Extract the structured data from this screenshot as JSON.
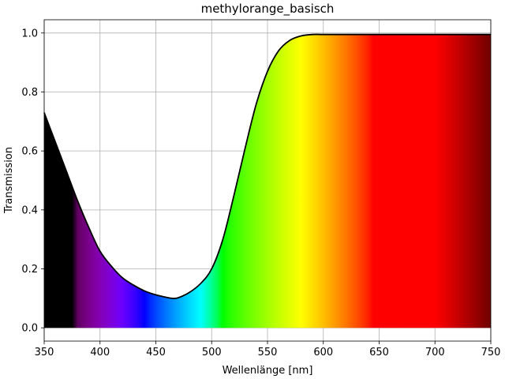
{
  "chart_data": {
    "type": "area",
    "title": "methylorange_basisch",
    "xlabel": "Wellenlänge [nm]",
    "ylabel": "Transmission",
    "xlim": [
      350,
      750
    ],
    "ylim": [
      -0.045,
      1.045
    ],
    "xticks": [
      350,
      400,
      450,
      500,
      550,
      600,
      650,
      700,
      750
    ],
    "yticks": [
      0.0,
      0.2,
      0.4,
      0.6,
      0.8,
      1.0
    ],
    "ytick_labels": [
      "0.0",
      "0.2",
      "0.4",
      "0.6",
      "0.8",
      "1.0"
    ],
    "grid": true,
    "fill": "visible spectrum colors under the curve",
    "series": [
      {
        "x": [
          350,
          360,
          370,
          380,
          390,
          400,
          410,
          420,
          430,
          440,
          450,
          460,
          465,
          470,
          480,
          490,
          500,
          510,
          520,
          530,
          540,
          550,
          560,
          570,
          580,
          590,
          600,
          620,
          650,
          700,
          750
        ],
        "y": [
          0.73,
          0.63,
          0.53,
          0.43,
          0.34,
          0.26,
          0.21,
          0.17,
          0.145,
          0.125,
          0.112,
          0.103,
          0.1,
          0.102,
          0.12,
          0.15,
          0.2,
          0.3,
          0.45,
          0.61,
          0.76,
          0.87,
          0.94,
          0.975,
          0.99,
          0.995,
          0.995,
          0.995,
          0.995,
          0.995,
          0.995
        ],
        "color": "#000000"
      }
    ]
  }
}
